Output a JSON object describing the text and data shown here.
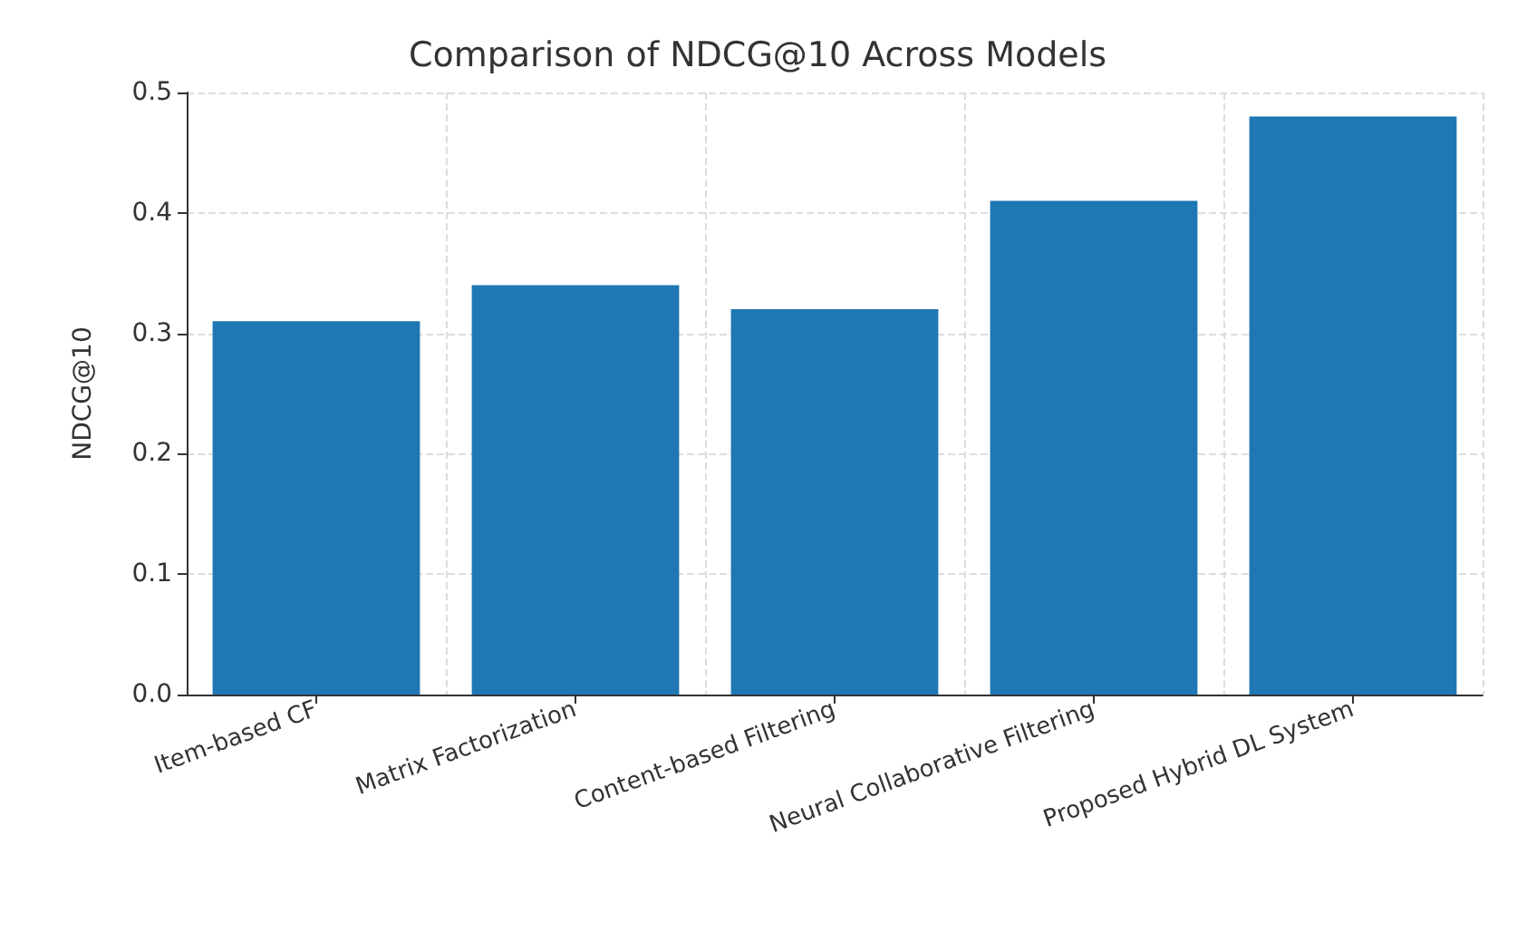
{
  "chart_data": {
    "type": "bar",
    "title": "Comparison of NDCG@10 Across Models",
    "ylabel": "NDCG@10",
    "categories": [
      "Item-based CF",
      "Matrix Factorization",
      "Content-based Filtering",
      "Neural Collaborative Filtering",
      "Proposed Hybrid DL System"
    ],
    "values": [
      0.31,
      0.34,
      0.32,
      0.41,
      0.48
    ],
    "color": "#1f77b4",
    "ylim": [
      0,
      0.5
    ],
    "yticks": [
      {
        "value": 0,
        "label": "0.0"
      },
      {
        "value": 0.1,
        "label": "0.1"
      },
      {
        "value": 0.2,
        "label": "0.2"
      },
      {
        "value": 0.3,
        "label": "0.3"
      },
      {
        "value": 0.4,
        "label": "0.4"
      },
      {
        "value": 0.5,
        "label": "0.5"
      }
    ],
    "grid": true
  }
}
